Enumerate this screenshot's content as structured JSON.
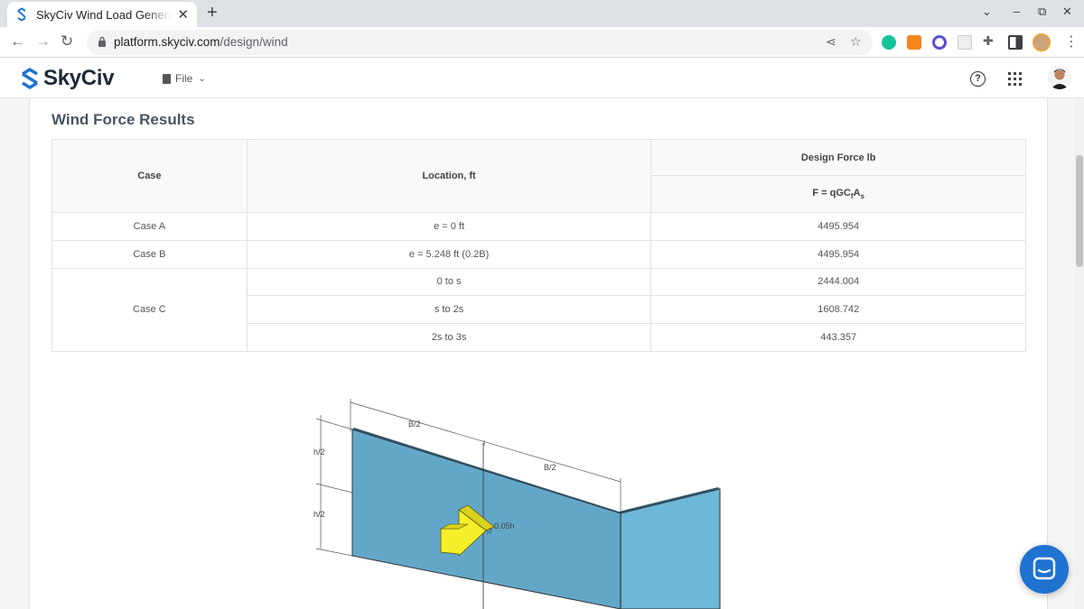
{
  "browser": {
    "tab_title": "SkyCiv Wind Load Generat",
    "tab_close": "✕",
    "new_tab": "+",
    "url_domain": "platform.skyciv.com",
    "url_path": "/design/wind",
    "window_controls": [
      "⌄",
      "–",
      "⧉",
      "✕"
    ]
  },
  "app": {
    "brand": "SkyCiv",
    "file_menu": "File",
    "help_label": "?"
  },
  "results": {
    "title": "Wind Force Results",
    "headers": {
      "case": "Case",
      "location": "Location, ft",
      "design_force": "Design Force lb",
      "formula_prefix": "F = qGC",
      "formula_sub1": "f",
      "formula_mid": "A",
      "formula_sub2": "s"
    },
    "rows": [
      {
        "case": "Case A",
        "location": "e = 0 ft",
        "force": "4495.954"
      },
      {
        "case": "Case B",
        "location": "e = 5.248 ft (0.2B)",
        "force": "4495.954"
      },
      {
        "case": "Case C",
        "location": "0 to s",
        "force": "2444.004"
      },
      {
        "case": "",
        "location": "s to 2s",
        "force": "1608.742"
      },
      {
        "case": "",
        "location": "2s to 3s",
        "force": "443.357"
      }
    ]
  },
  "diagram": {
    "labels": {
      "b_half_1": "B/2",
      "b_half_2": "B/2",
      "h_half_1": "h/2",
      "h_half_2": "h/2",
      "offset": "0.05h"
    },
    "colors": {
      "wall": "#63a7c8",
      "wall_side": "#6db8d8",
      "arrow": "#f5ef2a"
    }
  },
  "colors": {
    "accent": "#1f73d1",
    "header_bg": "#f9f9f9"
  }
}
